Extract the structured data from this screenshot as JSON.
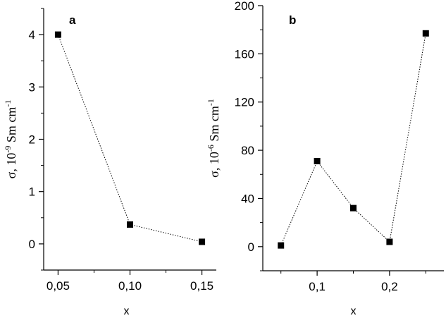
{
  "chart_data": [
    {
      "type": "scatter",
      "panel_label": "a",
      "x": [
        0.05,
        0.1,
        0.15
      ],
      "values": [
        4.0,
        0.37,
        0.04
      ],
      "xlabel": "x",
      "ylabel": {
        "base": "σ, 10",
        "exp": "-9",
        "unit": " Sm cm",
        "unit_exp": "-1"
      },
      "xlim": [
        0.04,
        0.16
      ],
      "ylim": [
        -0.5,
        4.5
      ],
      "xticks": [
        0.05,
        0.1,
        0.15
      ],
      "xtick_labels": [
        "0,05",
        "0,10",
        "0,15"
      ],
      "yticks": [
        0,
        1,
        2,
        3,
        4
      ],
      "ytick_labels": [
        "0",
        "1",
        "2",
        "3",
        "4"
      ],
      "connected": "dotted",
      "marker": "square",
      "grid": false
    },
    {
      "type": "scatter",
      "panel_label": "b",
      "x": [
        0.05,
        0.1,
        0.15,
        0.2,
        0.25
      ],
      "values": [
        1,
        71,
        32,
        4,
        177
      ],
      "xlabel": "x",
      "ylabel": {
        "base": "σ, 10",
        "exp": "-6",
        "unit": " Sm cm",
        "unit_exp": "-1"
      },
      "xlim": [
        0.025,
        0.275
      ],
      "ylim": [
        -20,
        200
      ],
      "xticks": [
        0.1,
        0.2
      ],
      "xtick_labels": [
        "0,1",
        "0,2"
      ],
      "yticks": [
        0,
        40,
        80,
        120,
        160,
        200
      ],
      "ytick_labels": [
        "0",
        "40",
        "80",
        "120",
        "160",
        "200"
      ],
      "connected": "dotted",
      "marker": "square",
      "grid": false
    }
  ],
  "colors": {
    "marker": "#000000",
    "axis": "#000000",
    "line": "#000000"
  }
}
